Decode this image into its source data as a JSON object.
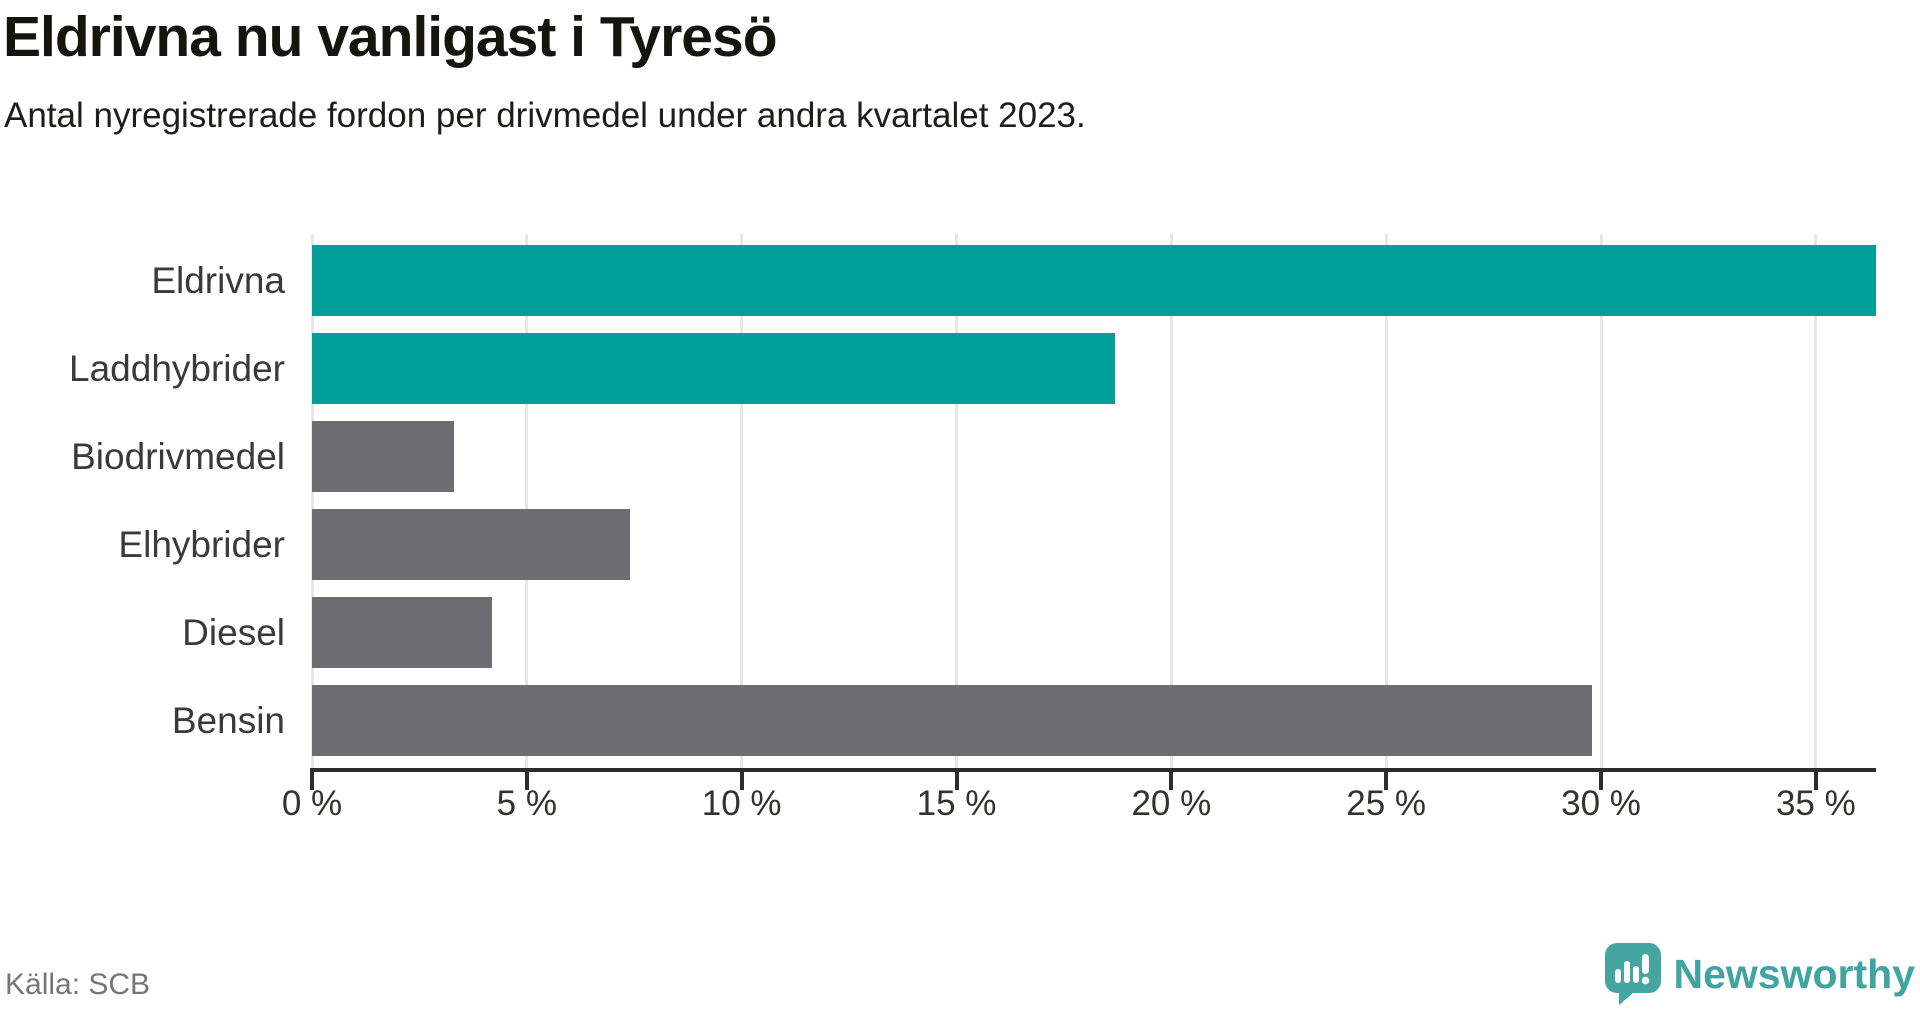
{
  "header": {
    "title": "Eldrivna nu vanligast i Tyresö",
    "subtitle": "Antal nyregistrerade fordon per drivmedel under andra kvartalet 2023."
  },
  "footer": {
    "source": "Källa: SCB",
    "brand": "Newsworthy"
  },
  "colors": {
    "accent_teal": "#009E98",
    "neutral_gray": "#6E6D72",
    "axis": "#2D2D2D",
    "gridline": "#E7E7E7",
    "logo_teal": "#40A5A0"
  },
  "chart_data": {
    "type": "bar",
    "orientation": "horizontal",
    "title": "Eldrivna nu vanligast i Tyresö",
    "subtitle": "Antal nyregistrerade fordon per drivmedel under andra kvartalet 2023.",
    "categories": [
      "Eldrivna",
      "Laddhybrider",
      "Biodrivmedel",
      "Elhybrider",
      "Diesel",
      "Bensin"
    ],
    "values": [
      36.4,
      18.7,
      3.3,
      7.4,
      4.2,
      29.8
    ],
    "unit": "%",
    "bar_colors": [
      "#009E98",
      "#009E98",
      "#6E6D72",
      "#6E6D72",
      "#6E6D72",
      "#6E6D72"
    ],
    "x_tick_values": [
      0,
      5,
      10,
      15,
      20,
      25,
      30,
      35
    ],
    "x_tick_labels": [
      "0 %",
      "5 %",
      "10 %",
      "15 %",
      "20 %",
      "25 %",
      "30 %",
      "35 %"
    ],
    "xlim": [
      0,
      36.4
    ],
    "grid": "vertical",
    "legend": "none"
  }
}
